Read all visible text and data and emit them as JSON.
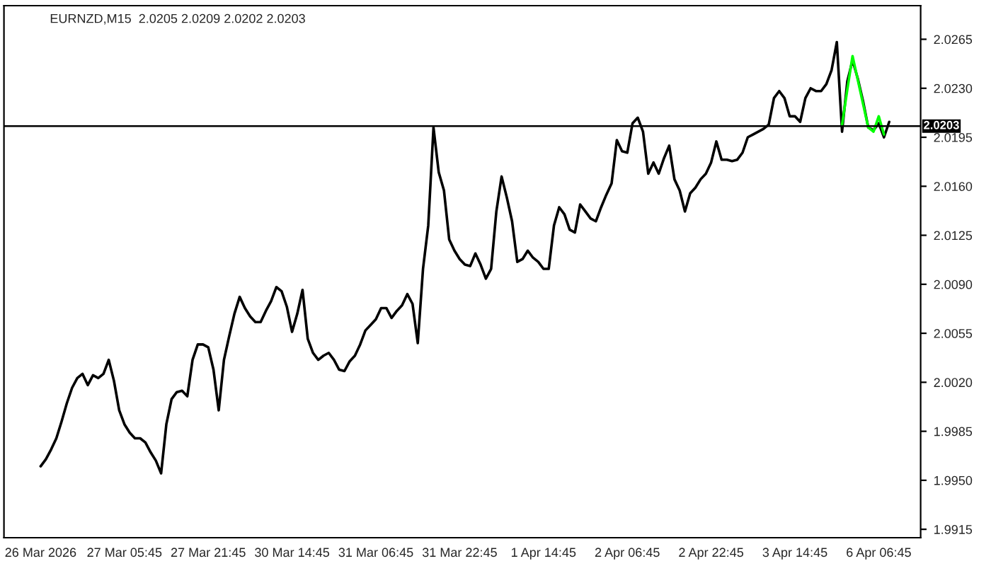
{
  "chart_data": {
    "type": "line",
    "title": "EURNZD,M15  2.0205 2.0209 2.0202 2.0203",
    "categories": [
      "26 Mar 2026",
      null,
      null,
      null,
      null,
      null,
      null,
      null,
      null,
      null,
      null,
      null,
      null,
      null,
      null,
      null,
      "27 Mar 05:45",
      null,
      null,
      null,
      null,
      null,
      null,
      null,
      null,
      null,
      null,
      null,
      null,
      null,
      null,
      null,
      "27 Mar 21:45",
      null,
      null,
      null,
      null,
      null,
      null,
      null,
      null,
      null,
      null,
      null,
      null,
      null,
      null,
      null,
      "30 Mar 14:45",
      null,
      null,
      null,
      null,
      null,
      null,
      null,
      null,
      null,
      null,
      null,
      null,
      null,
      null,
      null,
      "31 Mar 06:45",
      null,
      null,
      null,
      null,
      null,
      null,
      null,
      null,
      null,
      null,
      null,
      null,
      null,
      null,
      null,
      "31 Mar 22:45",
      null,
      null,
      null,
      null,
      null,
      null,
      null,
      null,
      null,
      null,
      null,
      null,
      null,
      null,
      null,
      "1 Apr 14:45",
      null,
      null,
      null,
      null,
      null,
      null,
      null,
      null,
      null,
      null,
      null,
      null,
      null,
      null,
      null,
      "2 Apr 06:45",
      null,
      null,
      null,
      null,
      null,
      null,
      null,
      null,
      null,
      null,
      null,
      null,
      null,
      null,
      null,
      "2 Apr 22:45",
      null,
      null,
      null,
      null,
      null,
      null,
      null,
      null,
      null,
      null,
      null,
      null,
      null,
      null,
      null,
      "3 Apr 14:45",
      null,
      null,
      null,
      null,
      null,
      null,
      null,
      null,
      null,
      null,
      null,
      null,
      null,
      null,
      null,
      "6 Apr 06:45",
      null,
      null
    ],
    "series": [
      {
        "color": "#000000",
        "values": [
          1.996,
          1.9965,
          1.9972,
          1.998,
          1.9992,
          2.0005,
          2.0016,
          2.0023,
          2.0026,
          2.0018,
          2.0025,
          2.0023,
          2.0026,
          2.0036,
          2.0021,
          2.0,
          1.999,
          1.9984,
          1.998,
          1.998,
          1.9977,
          1.997,
          1.9964,
          1.9955,
          1.999,
          2.0008,
          2.0013,
          2.0014,
          2.001,
          2.0036,
          2.0047,
          2.0047,
          2.0045,
          2.0029,
          2.0,
          2.0036,
          2.0053,
          2.0069,
          2.0081,
          2.0073,
          2.0067,
          2.0063,
          2.0063,
          2.0071,
          2.0078,
          2.0088,
          2.0085,
          2.0074,
          2.0056,
          2.0069,
          2.0086,
          2.0051,
          2.0041,
          2.0036,
          2.0039,
          2.0041,
          2.0036,
          2.0029,
          2.0028,
          2.0035,
          2.0039,
          2.0047,
          2.0057,
          2.0061,
          2.0065,
          2.0073,
          2.0073,
          2.0066,
          2.0071,
          2.0075,
          2.0083,
          2.0076,
          2.0048,
          2.0101,
          2.0132,
          2.0202,
          2.017,
          2.0157,
          2.0122,
          2.0114,
          2.0108,
          2.0104,
          2.0103,
          2.0112,
          2.0104,
          2.0094,
          2.0101,
          2.0142,
          2.0167,
          2.0152,
          2.0135,
          2.0106,
          2.0108,
          2.0114,
          2.0109,
          2.0106,
          2.0101,
          2.0101,
          2.0132,
          2.0145,
          2.014,
          2.0129,
          2.0127,
          2.0147,
          2.0142,
          2.0137,
          2.0135,
          2.0145,
          2.0154,
          2.0162,
          2.0193,
          2.0185,
          2.0184,
          2.0205,
          2.0209,
          2.0199,
          2.0169,
          2.0177,
          2.0169,
          2.018,
          2.0189,
          2.0165,
          2.0157,
          2.0142,
          2.0155,
          2.0159,
          2.0165,
          2.0169,
          2.0177,
          2.0192,
          2.0179,
          2.0179,
          2.0178,
          2.0179,
          2.0184,
          2.0195,
          2.0197,
          2.0199,
          2.0201,
          2.0204,
          2.0223,
          2.0228,
          2.0223,
          2.021,
          2.021,
          2.0206,
          2.0223,
          2.023,
          2.0228,
          2.0228,
          2.0233,
          2.0243,
          2.0263,
          2.0199,
          2.0235,
          2.025,
          2.0237,
          2.0221,
          2.0202,
          2.02,
          2.0205,
          2.0195,
          2.0206
        ]
      },
      {
        "color": "#00ff00",
        "values": [
          null,
          null,
          null,
          null,
          null,
          null,
          null,
          null,
          null,
          null,
          null,
          null,
          null,
          null,
          null,
          null,
          null,
          null,
          null,
          null,
          null,
          null,
          null,
          null,
          null,
          null,
          null,
          null,
          null,
          null,
          null,
          null,
          null,
          null,
          null,
          null,
          null,
          null,
          null,
          null,
          null,
          null,
          null,
          null,
          null,
          null,
          null,
          null,
          null,
          null,
          null,
          null,
          null,
          null,
          null,
          null,
          null,
          null,
          null,
          null,
          null,
          null,
          null,
          null,
          null,
          null,
          null,
          null,
          null,
          null,
          null,
          null,
          null,
          null,
          null,
          null,
          null,
          null,
          null,
          null,
          null,
          null,
          null,
          null,
          null,
          null,
          null,
          null,
          null,
          null,
          null,
          null,
          null,
          null,
          null,
          null,
          null,
          null,
          null,
          null,
          null,
          null,
          null,
          null,
          null,
          null,
          null,
          null,
          null,
          null,
          null,
          null,
          null,
          null,
          null,
          null,
          null,
          null,
          null,
          null,
          null,
          null,
          null,
          null,
          null,
          null,
          null,
          null,
          null,
          null,
          null,
          null,
          null,
          null,
          null,
          null,
          null,
          null,
          null,
          null,
          null,
          null,
          null,
          null,
          null,
          null,
          null,
          null,
          null,
          null,
          null,
          null,
          null,
          2.0204,
          2.0229,
          2.0253,
          2.0236,
          2.0219,
          2.0202,
          2.0199,
          2.021,
          2.0197,
          null
        ]
      }
    ],
    "ylim": [
      1.9909,
      2.0289
    ],
    "yticks": [
      {
        "value": 1.9915,
        "label": "1.9915"
      },
      {
        "value": 1.995,
        "label": "1.9950"
      },
      {
        "value": 1.9985,
        "label": "1.9985"
      },
      {
        "value": 2.002,
        "label": "2.0020"
      },
      {
        "value": 2.0055,
        "label": "2.0055"
      },
      {
        "value": 2.009,
        "label": "2.0090"
      },
      {
        "value": 2.0125,
        "label": "2.0125"
      },
      {
        "value": 2.016,
        "label": "2.0160"
      },
      {
        "value": 2.0195,
        "label": "2.0195"
      },
      {
        "value": 2.023,
        "label": "2.0230"
      },
      {
        "value": 2.0265,
        "label": "2.0265"
      }
    ],
    "ref_lines": [
      {
        "axis": "y",
        "value": 2.0203,
        "label": "2.0203",
        "color": "#000000"
      }
    ],
    "grid": false,
    "legend": false
  }
}
